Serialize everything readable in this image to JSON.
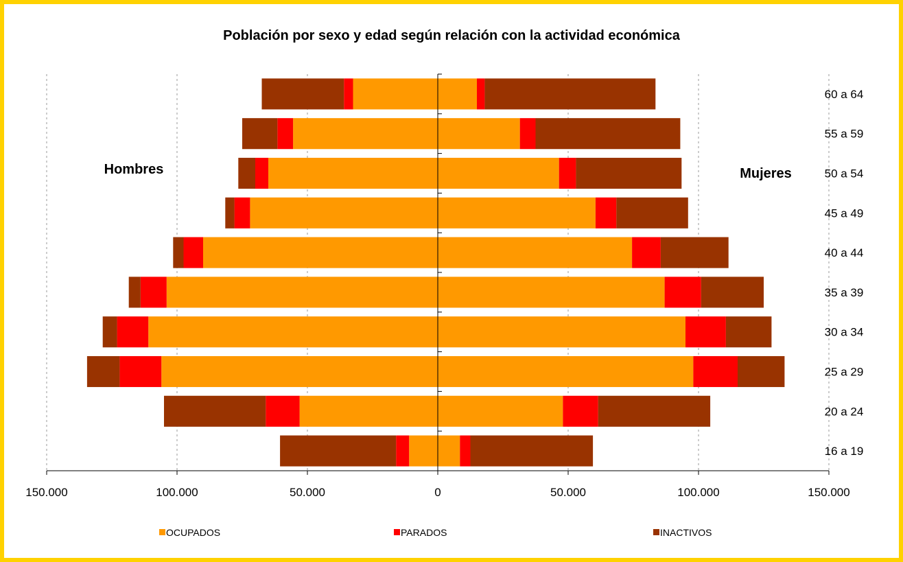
{
  "chart_data": {
    "type": "bar",
    "orientation": "horizontal",
    "stacked": true,
    "title": "Población por sexo y edad según relación con la actividad económica",
    "left_label": "Hombres",
    "right_label": "Mujeres",
    "categories": [
      "16 a 19",
      "20 a 24",
      "25 a 29",
      "30 a 34",
      "35 a 39",
      "40 a 44",
      "45 a 49",
      "50 a 54",
      "55 a 59",
      "60 a 64"
    ],
    "xlim": [
      -150000,
      150000
    ],
    "x_ticks": [
      {
        "value": -150000,
        "label": "150.000"
      },
      {
        "value": -100000,
        "label": "100.000"
      },
      {
        "value": -50000,
        "label": "50.000"
      },
      {
        "value": 0,
        "label": "0"
      },
      {
        "value": 50000,
        "label": "50.000"
      },
      {
        "value": 100000,
        "label": "100.000"
      },
      {
        "value": 150000,
        "label": "150.000"
      }
    ],
    "grid": "vertical-dotted",
    "legend_position": "bottom",
    "series_order": [
      "OCUPADOS",
      "PARADOS",
      "INACTIVOS"
    ],
    "series_colors": {
      "OCUPADOS": "#ff9900",
      "PARADOS": "#ff0000",
      "INACTIVOS": "#993300"
    },
    "hombres": {
      "OCUPADOS": [
        11000,
        53000,
        106000,
        111000,
        104000,
        90000,
        72000,
        65000,
        55500,
        32500
      ],
      "PARADOS": [
        5000,
        13000,
        16000,
        12000,
        10000,
        7500,
        6000,
        5000,
        6000,
        3500
      ],
      "INACTIVOS": [
        44500,
        39000,
        12500,
        5500,
        4500,
        4000,
        3500,
        6500,
        13500,
        31500
      ]
    },
    "mujeres": {
      "OCUPADOS": [
        8500,
        48000,
        98000,
        95000,
        87000,
        74500,
        60500,
        46500,
        31500,
        15000
      ],
      "PARADOS": [
        4000,
        13500,
        17000,
        15500,
        14000,
        11000,
        8000,
        6500,
        6000,
        3000
      ],
      "INACTIVOS": [
        47000,
        43000,
        18000,
        17500,
        24000,
        26000,
        27500,
        40500,
        55500,
        65500
      ]
    }
  }
}
